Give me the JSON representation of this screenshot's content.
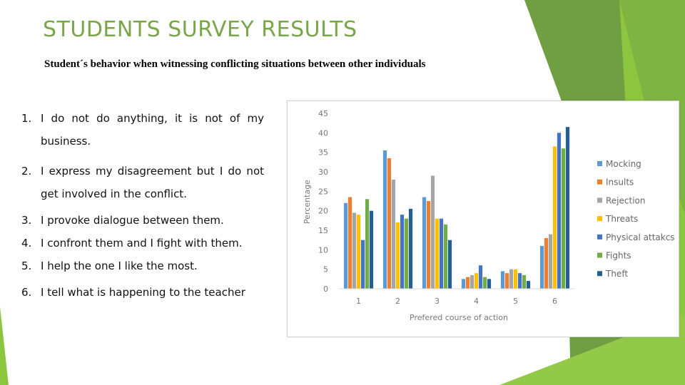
{
  "slide": {
    "title": "STUDENTS SURVEY RESULTS",
    "subtitle": "Student´s behavior when witnessing conflicting situations between other individuals"
  },
  "options": [
    {
      "num": "1.",
      "text": "I do not do anything, it is not of my business."
    },
    {
      "num": "2.",
      "text": "I express my disagreement but I do not get involved in the conflict."
    },
    {
      "num": "3.",
      "text": "I provoke dialogue between them."
    },
    {
      "num": "4.",
      "text": "I confront them and I fight with them."
    },
    {
      "num": "5.",
      "text": "I help the one I like the most."
    },
    {
      "num": "6.",
      "text": "I tell what is happening to the teacher"
    }
  ],
  "colors": {
    "accent_green": "#7aa64a",
    "deco_dark": "#5c8a36",
    "deco_light": "#8cc63f"
  },
  "chart_data": {
    "type": "bar",
    "xlabel": "Prefered course of action",
    "ylabel": "Percentage",
    "ylim": [
      0,
      45
    ],
    "yticks": [
      0,
      5,
      10,
      15,
      20,
      25,
      30,
      35,
      40,
      45
    ],
    "categories": [
      "1",
      "2",
      "3",
      "4",
      "5",
      "6"
    ],
    "grid": false,
    "legend_position": "right",
    "series": [
      {
        "name": "Mocking",
        "color": "#5b9bd5",
        "values": [
          22,
          35.5,
          23.5,
          2.5,
          4.5,
          11
        ]
      },
      {
        "name": "Insults",
        "color": "#ed7d31",
        "values": [
          23.5,
          33.5,
          22.5,
          3,
          4,
          13
        ]
      },
      {
        "name": "Rejection",
        "color": "#a5a5a5",
        "values": [
          19.5,
          28,
          29,
          3.5,
          5,
          14
        ]
      },
      {
        "name": "Threats",
        "color": "#ffc000",
        "values": [
          19,
          17,
          18,
          4,
          5,
          36.5
        ]
      },
      {
        "name": "Physical attakcs",
        "color": "#4472c4",
        "values": [
          12.5,
          19,
          18,
          6,
          4,
          40
        ]
      },
      {
        "name": "Fights",
        "color": "#70ad47",
        "values": [
          23,
          18,
          16.5,
          3,
          3.5,
          36
        ]
      },
      {
        "name": "Theft",
        "color": "#255e91",
        "values": [
          20,
          20.5,
          12.5,
          2.5,
          2,
          41.5
        ]
      }
    ]
  }
}
